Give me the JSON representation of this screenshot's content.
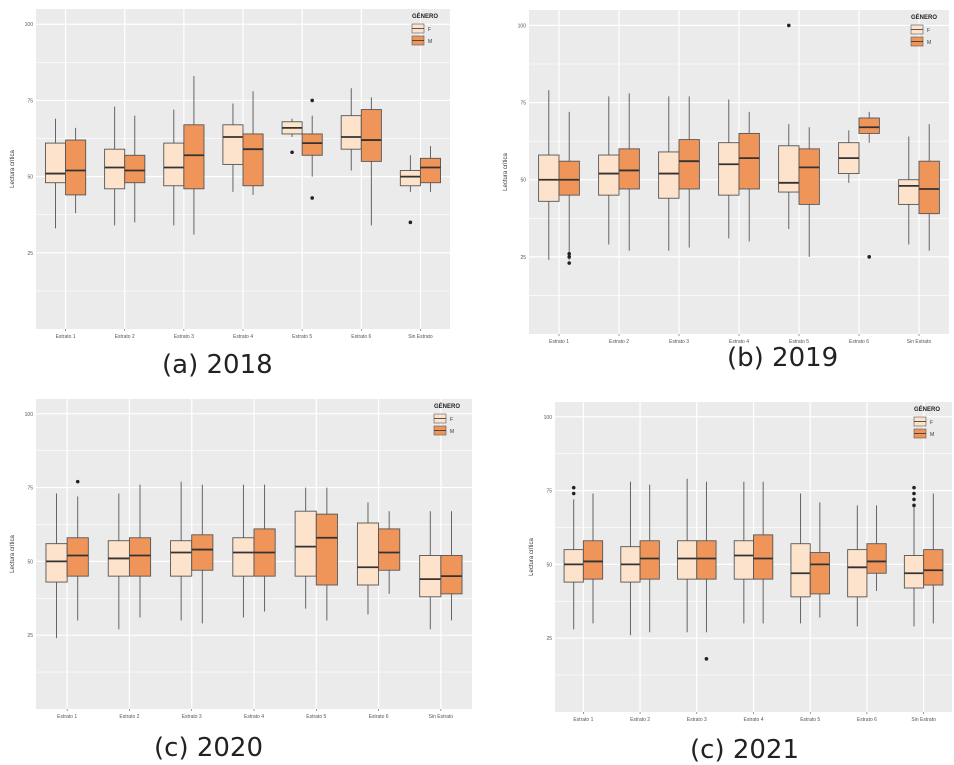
{
  "colors": {
    "panel_bg": "#ebebeb",
    "grid": "#ffffff",
    "F": "#fde3cc",
    "M": "#f0955a",
    "stroke": "#555555"
  },
  "chart_data": [
    {
      "type": "boxplot",
      "caption": "(a) 2018",
      "ylabel": "Lectura crítica",
      "ylim": [
        0,
        105
      ],
      "yticks": [
        25,
        50,
        75,
        100
      ],
      "legend": {
        "title": "GÉNERO",
        "entries": [
          "F",
          "M"
        ]
      },
      "categories": [
        "Estrato 1",
        "Estrato 2",
        "Estrato 3",
        "Estrato 4",
        "Estrato 5",
        "Estrato 6",
        "Sin Estrato"
      ],
      "series": [
        {
          "name": "F",
          "boxes": [
            {
              "min": 33,
              "q1": 48,
              "median": 51,
              "q3": 61,
              "max": 69,
              "outliers": []
            },
            {
              "min": 34,
              "q1": 46,
              "median": 53,
              "q3": 59,
              "max": 73,
              "outliers": []
            },
            {
              "min": 34,
              "q1": 47,
              "median": 53,
              "q3": 61,
              "max": 72,
              "outliers": []
            },
            {
              "min": 45,
              "q1": 54,
              "median": 63,
              "q3": 67,
              "max": 74,
              "outliers": []
            },
            {
              "min": 63,
              "q1": 64,
              "median": 66,
              "q3": 68,
              "max": 69,
              "outliers": [
                58
              ]
            },
            {
              "min": 52,
              "q1": 59,
              "median": 63,
              "q3": 70,
              "max": 79,
              "outliers": []
            },
            {
              "min": 45,
              "q1": 47,
              "median": 50,
              "q3": 52,
              "max": 57,
              "outliers": [
                35
              ]
            }
          ]
        },
        {
          "name": "M",
          "boxes": [
            {
              "min": 38,
              "q1": 44,
              "median": 52,
              "q3": 62,
              "max": 66,
              "outliers": []
            },
            {
              "min": 35,
              "q1": 48,
              "median": 52,
              "q3": 57,
              "max": 70,
              "outliers": []
            },
            {
              "min": 31,
              "q1": 46,
              "median": 57,
              "q3": 67,
              "max": 83,
              "outliers": []
            },
            {
              "min": 44,
              "q1": 47,
              "median": 59,
              "q3": 64,
              "max": 78,
              "outliers": []
            },
            {
              "min": 50,
              "q1": 57,
              "median": 61,
              "q3": 64,
              "max": 70,
              "outliers": [
                75,
                43
              ]
            },
            {
              "min": 34,
              "q1": 55,
              "median": 62,
              "q3": 72,
              "max": 76,
              "outliers": []
            },
            {
              "min": 45,
              "q1": 48,
              "median": 53,
              "q3": 56,
              "max": 60,
              "outliers": []
            }
          ]
        }
      ]
    },
    {
      "type": "boxplot",
      "caption": "(b) 2019",
      "ylabel": "Lectura crítica",
      "ylim": [
        0,
        105
      ],
      "yticks": [
        25,
        50,
        75,
        100
      ],
      "legend": {
        "title": "GÉNERO",
        "entries": [
          "F",
          "M"
        ]
      },
      "categories": [
        "Estrato 1",
        "Estrato 2",
        "Estrato 3",
        "Estrato 4",
        "Estrato 5",
        "Estrato 6",
        "Sin Estrato"
      ],
      "series": [
        {
          "name": "F",
          "boxes": [
            {
              "min": 24,
              "q1": 43,
              "median": 50,
              "q3": 58,
              "max": 79,
              "outliers": []
            },
            {
              "min": 29,
              "q1": 45,
              "median": 52,
              "q3": 58,
              "max": 77,
              "outliers": []
            },
            {
              "min": 27,
              "q1": 44,
              "median": 52,
              "q3": 59,
              "max": 77,
              "outliers": []
            },
            {
              "min": 31,
              "q1": 45,
              "median": 55,
              "q3": 62,
              "max": 76,
              "outliers": []
            },
            {
              "min": 34,
              "q1": 46,
              "median": 49,
              "q3": 61,
              "max": 68,
              "outliers": [
                100
              ]
            },
            {
              "min": 49,
              "q1": 52,
              "median": 57,
              "q3": 62,
              "max": 66,
              "outliers": []
            },
            {
              "min": 29,
              "q1": 42,
              "median": 48,
              "q3": 50,
              "max": 64,
              "outliers": []
            }
          ]
        },
        {
          "name": "M",
          "boxes": [
            {
              "min": 24,
              "q1": 45,
              "median": 50,
              "q3": 56,
              "max": 72,
              "outliers": [
                26,
                25,
                23
              ]
            },
            {
              "min": 27,
              "q1": 47,
              "median": 53,
              "q3": 60,
              "max": 78,
              "outliers": []
            },
            {
              "min": 28,
              "q1": 47,
              "median": 56,
              "q3": 63,
              "max": 77,
              "outliers": []
            },
            {
              "min": 30,
              "q1": 47,
              "median": 57,
              "q3": 65,
              "max": 72,
              "outliers": []
            },
            {
              "min": 25,
              "q1": 42,
              "median": 54,
              "q3": 60,
              "max": 67,
              "outliers": []
            },
            {
              "min": 62,
              "q1": 65,
              "median": 67,
              "q3": 70,
              "max": 72,
              "outliers": [
                25
              ]
            },
            {
              "min": 27,
              "q1": 39,
              "median": 47,
              "q3": 56,
              "max": 68,
              "outliers": []
            }
          ]
        }
      ]
    },
    {
      "type": "boxplot",
      "caption": "(c) 2020",
      "ylabel": "Lectura crítica",
      "ylim": [
        0,
        105
      ],
      "yticks": [
        25,
        50,
        75,
        100
      ],
      "legend": {
        "title": "GÉNERO",
        "entries": [
          "F",
          "M"
        ]
      },
      "categories": [
        "Estrato 1",
        "Estrato 2",
        "Estrato 3",
        "Estrato 4",
        "Estrato 5",
        "Estrato 6",
        "Sin Estrato"
      ],
      "series": [
        {
          "name": "F",
          "boxes": [
            {
              "min": 24,
              "q1": 43,
              "median": 50,
              "q3": 56,
              "max": 73,
              "outliers": []
            },
            {
              "min": 27,
              "q1": 45,
              "median": 51,
              "q3": 57,
              "max": 73,
              "outliers": []
            },
            {
              "min": 30,
              "q1": 45,
              "median": 53,
              "q3": 57,
              "max": 77,
              "outliers": []
            },
            {
              "min": 31,
              "q1": 45,
              "median": 53,
              "q3": 58,
              "max": 76,
              "outliers": []
            },
            {
              "min": 34,
              "q1": 45,
              "median": 55,
              "q3": 67,
              "max": 75,
              "outliers": []
            },
            {
              "min": 32,
              "q1": 42,
              "median": 48,
              "q3": 63,
              "max": 70,
              "outliers": []
            },
            {
              "min": 27,
              "q1": 38,
              "median": 44,
              "q3": 52,
              "max": 67,
              "outliers": []
            }
          ]
        },
        {
          "name": "M",
          "boxes": [
            {
              "min": 30,
              "q1": 45,
              "median": 52,
              "q3": 58,
              "max": 72,
              "outliers": [
                77
              ]
            },
            {
              "min": 31,
              "q1": 45,
              "median": 52,
              "q3": 58,
              "max": 76,
              "outliers": []
            },
            {
              "min": 29,
              "q1": 47,
              "median": 54,
              "q3": 59,
              "max": 76,
              "outliers": []
            },
            {
              "min": 33,
              "q1": 45,
              "median": 53,
              "q3": 61,
              "max": 76,
              "outliers": []
            },
            {
              "min": 30,
              "q1": 42,
              "median": 58,
              "q3": 66,
              "max": 75,
              "outliers": []
            },
            {
              "min": 39,
              "q1": 47,
              "median": 53,
              "q3": 61,
              "max": 67,
              "outliers": []
            },
            {
              "min": 30,
              "q1": 39,
              "median": 45,
              "q3": 52,
              "max": 67,
              "outliers": []
            }
          ]
        }
      ]
    },
    {
      "type": "boxplot",
      "caption": "(c) 2021",
      "ylabel": "Lectura crítica",
      "ylim": [
        0,
        105
      ],
      "yticks": [
        25,
        50,
        75,
        100
      ],
      "legend": {
        "title": "GÉNERO",
        "entries": [
          "F",
          "M"
        ]
      },
      "categories": [
        "Estrato 1",
        "Estrato 2",
        "Estrato 3",
        "Estrato 4",
        "Estrato 5",
        "Estrato 6",
        "Sin Estrato"
      ],
      "series": [
        {
          "name": "F",
          "boxes": [
            {
              "min": 28,
              "q1": 44,
              "median": 50,
              "q3": 55,
              "max": 72,
              "outliers": [
                76,
                74
              ]
            },
            {
              "min": 26,
              "q1": 44,
              "median": 50,
              "q3": 56,
              "max": 78,
              "outliers": []
            },
            {
              "min": 27,
              "q1": 45,
              "median": 52,
              "q3": 58,
              "max": 79,
              "outliers": []
            },
            {
              "min": 30,
              "q1": 45,
              "median": 53,
              "q3": 58,
              "max": 78,
              "outliers": []
            },
            {
              "min": 30,
              "q1": 39,
              "median": 47,
              "q3": 57,
              "max": 74,
              "outliers": []
            },
            {
              "min": 29,
              "q1": 39,
              "median": 49,
              "q3": 55,
              "max": 70,
              "outliers": []
            },
            {
              "min": 29,
              "q1": 42,
              "median": 47,
              "q3": 53,
              "max": 70,
              "outliers": [
                76,
                74,
                72,
                70
              ]
            }
          ]
        },
        {
          "name": "M",
          "boxes": [
            {
              "min": 30,
              "q1": 45,
              "median": 51,
              "q3": 58,
              "max": 74,
              "outliers": []
            },
            {
              "min": 27,
              "q1": 45,
              "median": 52,
              "q3": 58,
              "max": 77,
              "outliers": []
            },
            {
              "min": 27,
              "q1": 45,
              "median": 52,
              "q3": 58,
              "max": 78,
              "outliers": [
                18
              ]
            },
            {
              "min": 30,
              "q1": 45,
              "median": 52,
              "q3": 60,
              "max": 78,
              "outliers": []
            },
            {
              "min": 32,
              "q1": 40,
              "median": 50,
              "q3": 54,
              "max": 71,
              "outliers": []
            },
            {
              "min": 41,
              "q1": 47,
              "median": 51,
              "q3": 57,
              "max": 70,
              "outliers": []
            },
            {
              "min": 30,
              "q1": 43,
              "median": 48,
              "q3": 55,
              "max": 74,
              "outliers": []
            }
          ]
        }
      ]
    }
  ]
}
